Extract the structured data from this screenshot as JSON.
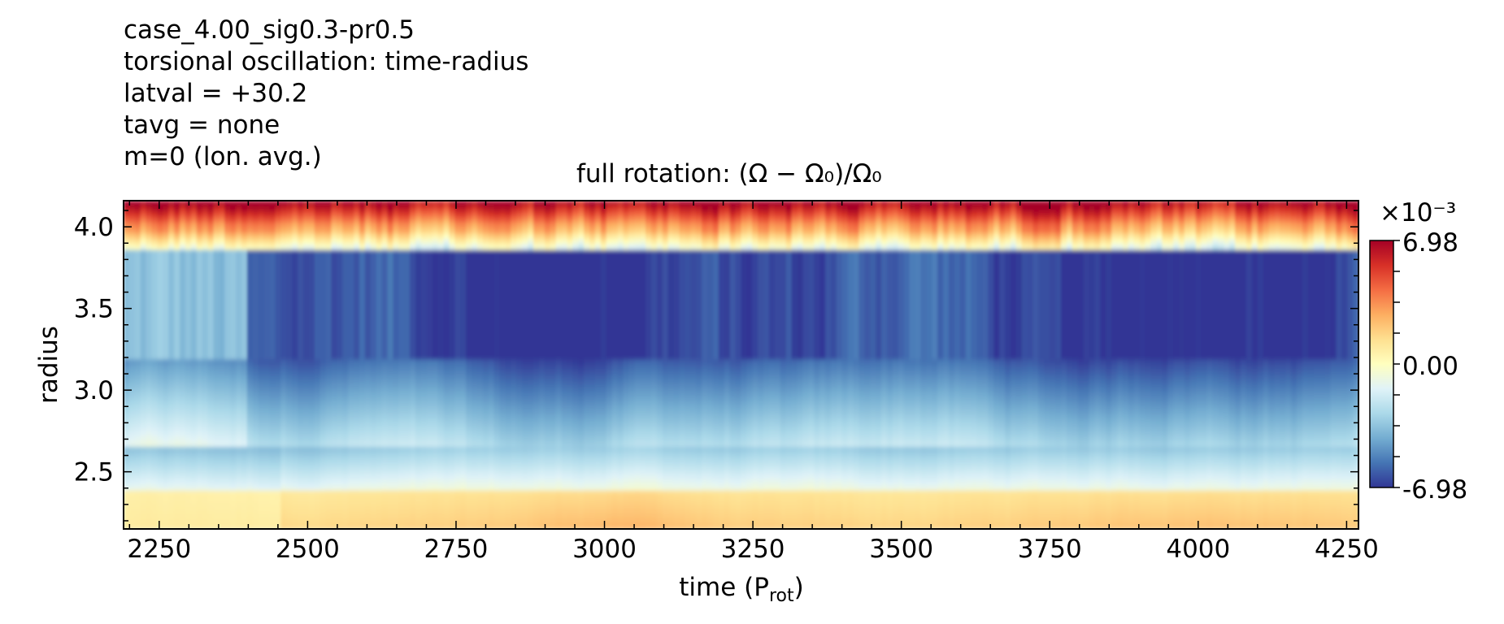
{
  "info_lines": [
    "case_4.00_sig0.3-pr0.5",
    "torsional oscillation: time-radius",
    "latval = +30.2",
    "tavg = none",
    "m=0 (lon. avg.)"
  ],
  "chart_data": {
    "type": "heatmap",
    "title": "full rotation: (Ω − Ω₀)/Ω₀",
    "xlabel": "time (P_rot)",
    "ylabel": "radius",
    "xlim": [
      2190,
      4270
    ],
    "ylim": [
      2.15,
      4.16
    ],
    "xticks": [
      "2250",
      "2500",
      "2750",
      "3000",
      "3250",
      "3500",
      "3750",
      "4000",
      "4250"
    ],
    "yticks": [
      "2.5",
      "3.0",
      "3.5",
      "4.0"
    ],
    "colorbar": {
      "multiplier": "×10⁻³",
      "min_label": "-6.98",
      "mid_label": "0.00",
      "max_label": "6.98",
      "vmin": -6.98,
      "vmax": 6.98,
      "colormap": "RdYlBu_r"
    },
    "description_values": {
      "near_top_band": "positive (red/orange) near r≈4.0-4.16",
      "mid_region": "strongly negative (deep blue) near r≈3.3-3.9",
      "lower_region": "weakly negative (light blue) near r≈2.5-3.0",
      "bottom_band": "positive (yellow/orange) near r≈2.15-2.4, strongest around t≈2950-3150 and 3800-4250"
    }
  }
}
